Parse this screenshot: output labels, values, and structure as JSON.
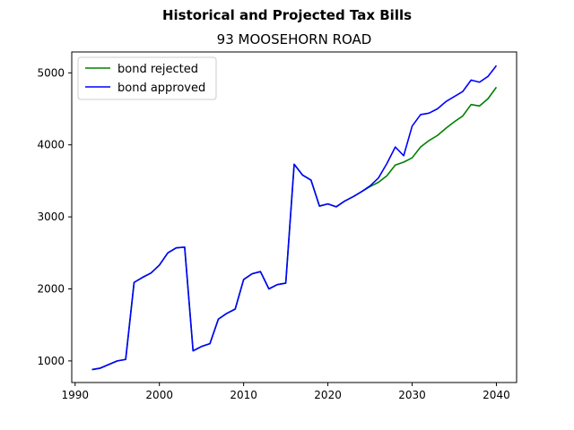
{
  "chart_data": {
    "type": "line",
    "title": "Historical and Projected Tax Bills",
    "subtitle": "93 MOOSEHORN ROAD",
    "xlabel": "",
    "ylabel": "",
    "xlim": [
      1989.6,
      2042.4
    ],
    "ylim": [
      700,
      5290
    ],
    "xticks": [
      1990,
      2000,
      2010,
      2020,
      2030,
      2040
    ],
    "yticks": [
      1000,
      2000,
      3000,
      4000,
      5000
    ],
    "grid": false,
    "legend_position": "top-left",
    "series": [
      {
        "name": "bond rejected",
        "color": "#008000",
        "x": [
          1992,
          1993,
          1994,
          1995,
          1996,
          1997,
          1998,
          1999,
          2000,
          2001,
          2002,
          2003,
          2004,
          2005,
          2006,
          2007,
          2008,
          2009,
          2010,
          2011,
          2012,
          2013,
          2014,
          2015,
          2016,
          2017,
          2018,
          2019,
          2020,
          2021,
          2022,
          2023,
          2024,
          2025,
          2026,
          2027,
          2028,
          2029,
          2030,
          2031,
          2032,
          2033,
          2034,
          2035,
          2036,
          2037,
          2038,
          2039,
          2040
        ],
        "y": [
          880,
          900,
          950,
          1000,
          1020,
          2090,
          2160,
          2220,
          2330,
          2500,
          2570,
          2580,
          1140,
          1200,
          1240,
          1580,
          1660,
          1720,
          2130,
          2210,
          2240,
          2000,
          2060,
          2080,
          3730,
          3580,
          3510,
          3150,
          3180,
          3140,
          3220,
          3280,
          3350,
          3420,
          3480,
          3570,
          3720,
          3760,
          3820,
          3970,
          4060,
          4130,
          4230,
          4320,
          4400,
          4560,
          4540,
          4640,
          4800
        ]
      },
      {
        "name": "bond approved",
        "color": "#0000ff",
        "x": [
          1992,
          1993,
          1994,
          1995,
          1996,
          1997,
          1998,
          1999,
          2000,
          2001,
          2002,
          2003,
          2004,
          2005,
          2006,
          2007,
          2008,
          2009,
          2010,
          2011,
          2012,
          2013,
          2014,
          2015,
          2016,
          2017,
          2018,
          2019,
          2020,
          2021,
          2022,
          2023,
          2024,
          2025,
          2026,
          2027,
          2028,
          2029,
          2030,
          2031,
          2032,
          2033,
          2034,
          2035,
          2036,
          2037,
          2038,
          2039,
          2040
        ],
        "y": [
          880,
          900,
          950,
          1000,
          1020,
          2090,
          2160,
          2220,
          2330,
          2500,
          2570,
          2580,
          1140,
          1200,
          1240,
          1580,
          1660,
          1720,
          2130,
          2210,
          2240,
          2000,
          2060,
          2080,
          3730,
          3580,
          3510,
          3150,
          3180,
          3140,
          3220,
          3280,
          3350,
          3430,
          3540,
          3740,
          3970,
          3850,
          4260,
          4420,
          4440,
          4500,
          4600,
          4670,
          4740,
          4900,
          4870,
          4950,
          5100
        ]
      }
    ]
  }
}
